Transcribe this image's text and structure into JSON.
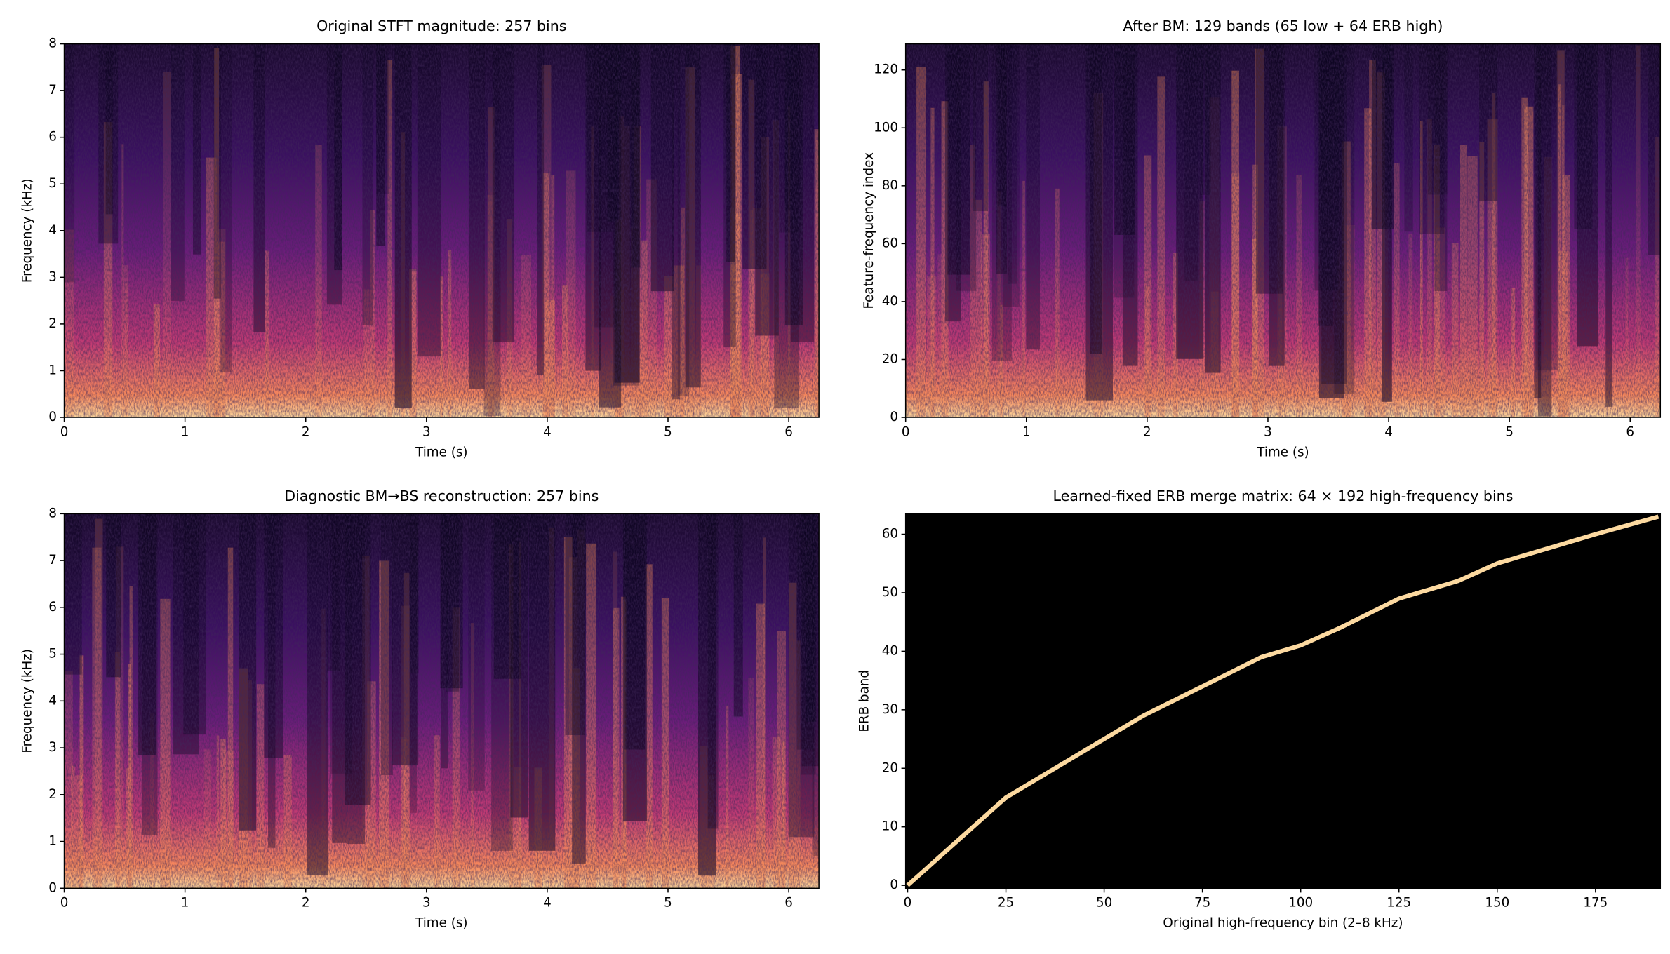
{
  "chart_data": [
    {
      "type": "spectrogram",
      "title": "Original STFT magnitude: 257 bins",
      "xlabel": "Time (s)",
      "ylabel": "Frequency (kHz)",
      "xlim": [
        0,
        6.25
      ],
      "ylim": [
        0,
        8
      ],
      "xticks": [
        0,
        1,
        2,
        3,
        4,
        5,
        6
      ],
      "yticks": [
        0,
        1,
        2,
        3,
        4,
        5,
        6,
        7,
        8
      ]
    },
    {
      "type": "spectrogram",
      "title": "After BM: 129 bands (65 low + 64 ERB high)",
      "xlabel": "Time (s)",
      "ylabel": "Feature-frequency index",
      "xlim": [
        0,
        6.25
      ],
      "ylim": [
        0,
        129
      ],
      "xticks": [
        0,
        1,
        2,
        3,
        4,
        5,
        6
      ],
      "yticks": [
        0,
        20,
        40,
        60,
        80,
        100,
        120
      ]
    },
    {
      "type": "spectrogram",
      "title": "Diagnostic BM→BS reconstruction: 257 bins",
      "xlabel": "Time (s)",
      "ylabel": "Frequency (kHz)",
      "xlim": [
        0,
        6.25
      ],
      "ylim": [
        0,
        8
      ],
      "xticks": [
        0,
        1,
        2,
        3,
        4,
        5,
        6
      ],
      "yticks": [
        0,
        1,
        2,
        3,
        4,
        5,
        6,
        7,
        8
      ]
    },
    {
      "type": "heatmap",
      "title": "Learned-fixed ERB merge matrix: 64 × 192 high-frequency bins",
      "xlabel": "Original high-frequency bin (2–8 kHz)",
      "ylabel": "ERB band",
      "xlim": [
        -0.5,
        191.5
      ],
      "ylim": [
        -0.5,
        63.5
      ],
      "xticks": [
        0,
        25,
        50,
        75,
        100,
        125,
        150,
        175
      ],
      "yticks": [
        0,
        10,
        20,
        30,
        40,
        50,
        60
      ],
      "x": [
        0,
        5,
        10,
        15,
        20,
        25,
        30,
        40,
        50,
        60,
        75,
        90,
        100,
        110,
        125,
        140,
        150,
        160,
        175,
        191
      ],
      "values": [
        0,
        3,
        6,
        9,
        12,
        15,
        17,
        21,
        25,
        29,
        34,
        39,
        41,
        44,
        49,
        52,
        55,
        57,
        60,
        63
      ],
      "color": "#fcd9a0"
    }
  ]
}
